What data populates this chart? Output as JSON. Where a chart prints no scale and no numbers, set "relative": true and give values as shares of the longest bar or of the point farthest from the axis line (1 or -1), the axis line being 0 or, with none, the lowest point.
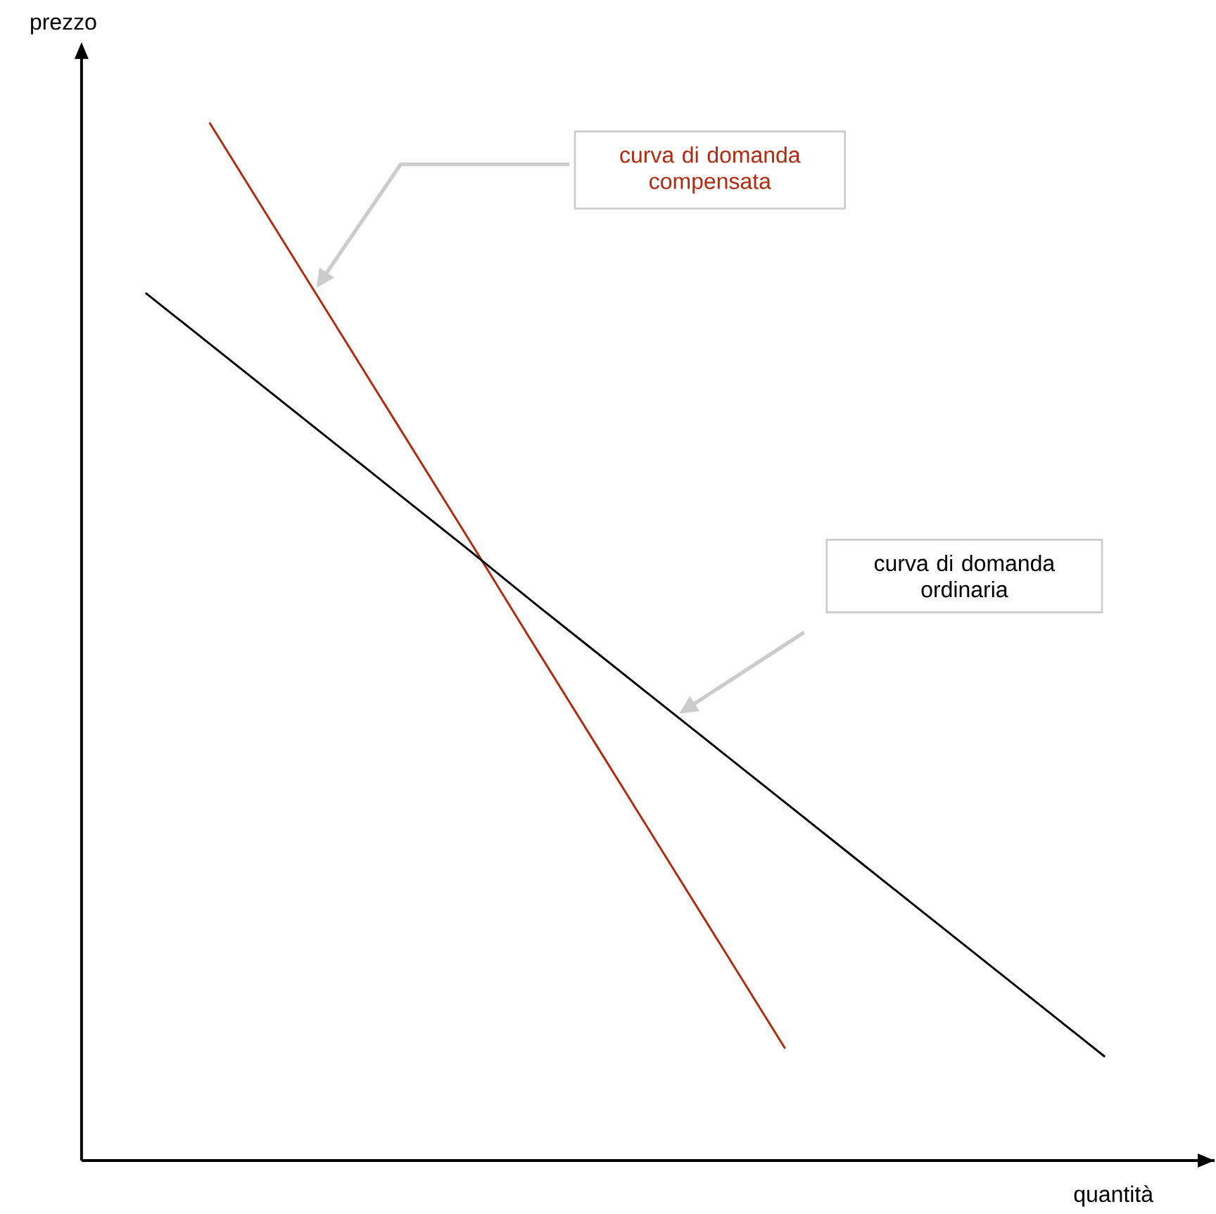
{
  "chart_data": {
    "type": "line",
    "relative": true,
    "xlabel": "quantità",
    "ylabel": "prezzo",
    "categories": [
      null,
      null,
      null,
      null,
      null,
      null,
      null,
      null,
      null,
      null,
      null,
      null,
      null,
      null,
      null,
      null,
      null
    ],
    "series": [
      {
        "color": "#b02a10",
        "values": [
          null,
          null,
          1.0,
          0.901,
          0.802,
          0.703,
          0.604,
          0.504,
          0.405,
          0.306,
          0.207,
          0.108,
          null,
          null,
          null,
          null,
          null
        ]
      },
      {
        "color": "#000000",
        "values": [
          null,
          0.836,
          0.787,
          0.738,
          0.689,
          0.64,
          0.591,
          0.541,
          0.492,
          0.443,
          0.394,
          0.345,
          0.296,
          0.247,
          0.198,
          0.149,
          0.1
        ]
      }
    ],
    "annotations": [
      "curva di domanda compensata",
      "curva di domanda ordinaria"
    ]
  }
}
